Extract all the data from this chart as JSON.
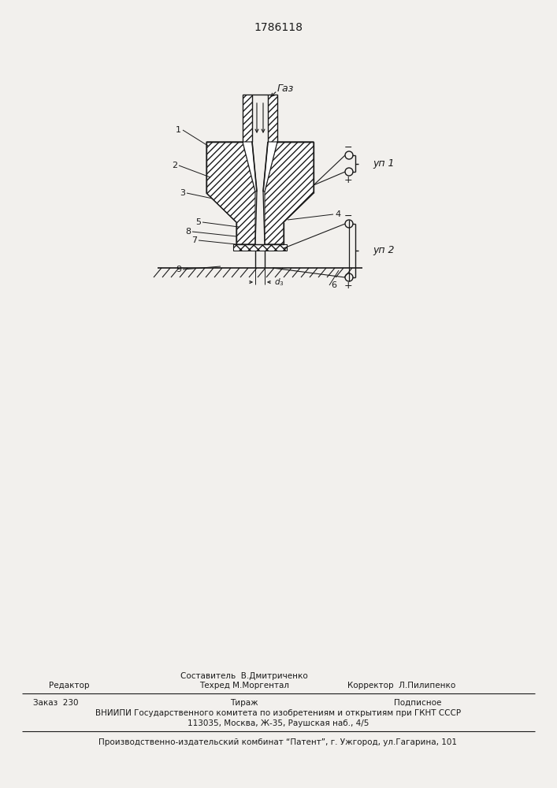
{
  "title": "1786118",
  "bg_color": "#f2f0ed",
  "line_color": "#1a1a1a",
  "label_gas": "Газ",
  "label_up1": "уп 1",
  "label_up2": "уп 2",
  "footer_line0": "Составитель  В.Дмитриченко",
  "footer_line1_left": "Редактор",
  "footer_line1_center": "Техред М.Моргентал",
  "footer_line1_right": "Корректор  Л.Пилипенко",
  "footer_line2_col1": "Заказ  230",
  "footer_line2_col2": "Тираж",
  "footer_line2_col3": "Подписное",
  "footer_line3": "ВНИИПИ Государственного комитета по изобретениям и открытиям при ГКНТ СССР",
  "footer_line4": "113035, Москва, Ж-35, Раушская наб., 4/5",
  "footer_line5": "Производственно-издательский комбинат “Патент”, г. Ужгород, ул.Гагарина, 101"
}
